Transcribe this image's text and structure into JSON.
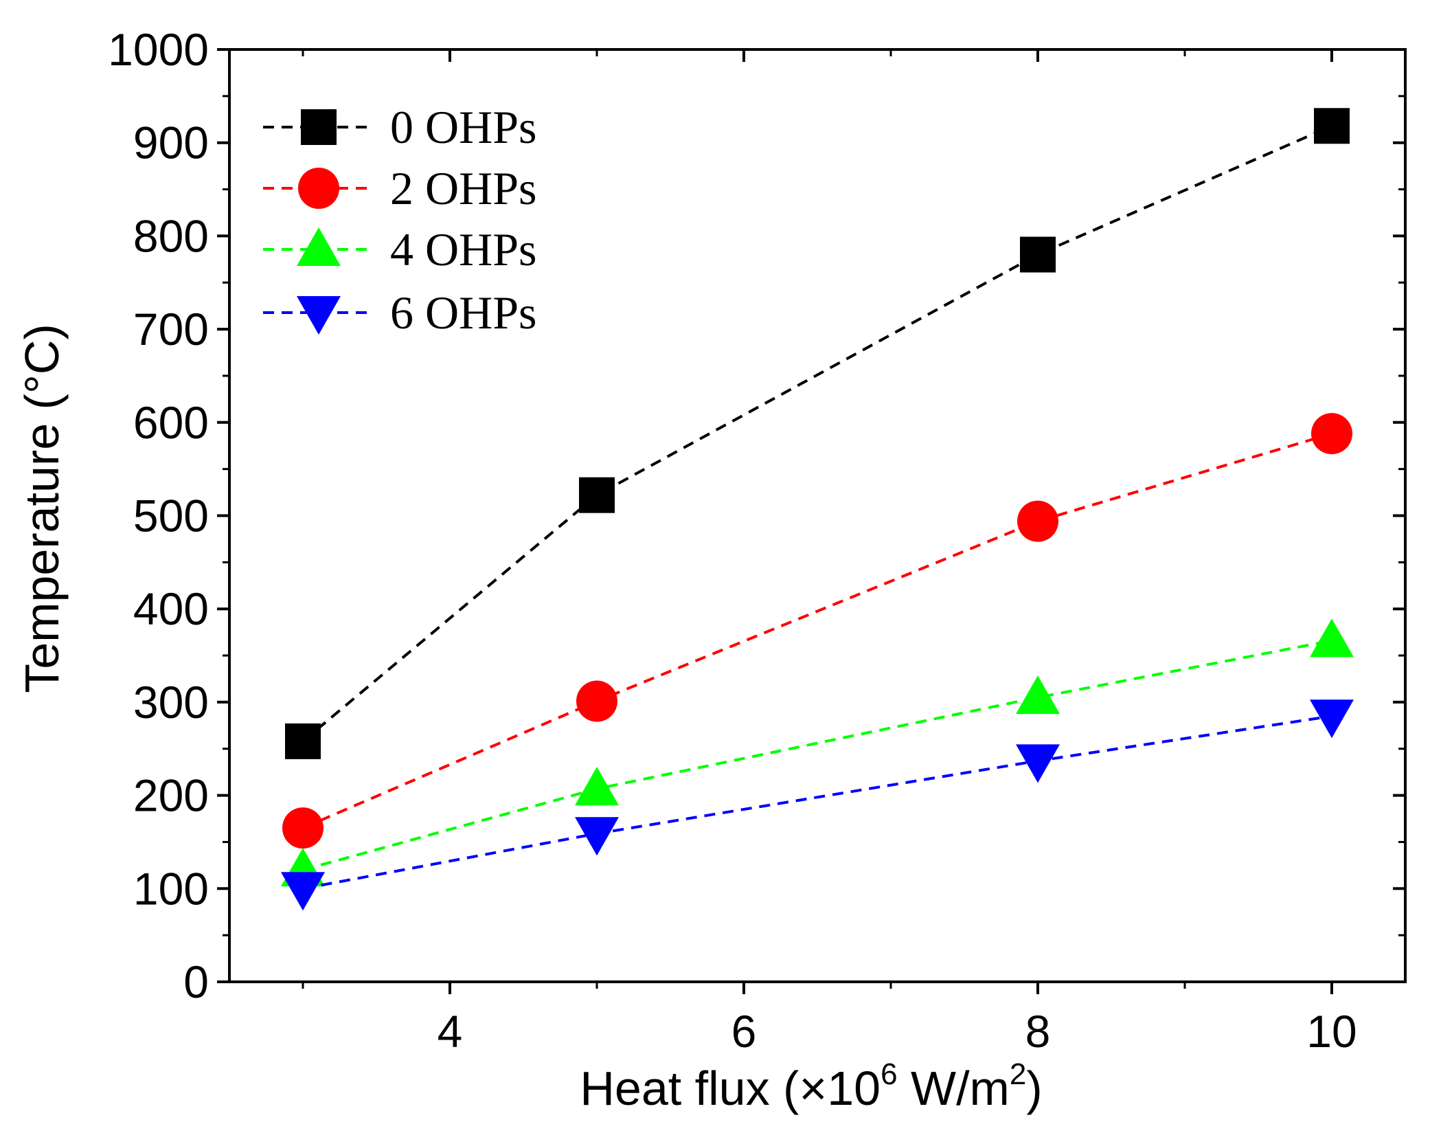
{
  "chart_data": {
    "type": "line",
    "title": "",
    "xlabel_main": "Heat flux (×10",
    "xlabel_exp": "6",
    "xlabel_unit": " W/m",
    "xlabel_unit_exp": "2",
    "xlabel_close": ")",
    "ylabel": "Temperature (°C)",
    "xlim": [
      2.5,
      10.5
    ],
    "ylim": [
      0,
      1000
    ],
    "xticks": [
      4,
      6,
      8,
      10
    ],
    "xticks_minor": [
      3,
      5,
      7,
      9
    ],
    "yticks": [
      0,
      100,
      200,
      300,
      400,
      500,
      600,
      700,
      800,
      900,
      1000
    ],
    "yticks_minor": [
      50,
      150,
      250,
      350,
      450,
      550,
      650,
      750,
      850,
      950
    ],
    "legend_position": "top-left",
    "series": [
      {
        "name": "0 OHPs",
        "marker": "square",
        "color": "#000000",
        "x": [
          3,
          5,
          8,
          10
        ],
        "y": [
          258,
          522,
          780,
          918
        ]
      },
      {
        "name": "2 OHPs",
        "marker": "circle",
        "color": "#ff0000",
        "x": [
          3,
          5,
          8,
          10
        ],
        "y": [
          165,
          301,
          494,
          588
        ]
      },
      {
        "name": "4 OHPs",
        "marker": "triangle-up",
        "color": "#00ff00",
        "x": [
          3,
          5,
          8,
          10
        ],
        "y": [
          120,
          207,
          305,
          366
        ]
      },
      {
        "name": "6 OHPs",
        "marker": "triangle-down",
        "color": "#0000ff",
        "x": [
          3,
          5,
          8,
          10
        ],
        "y": [
          100,
          159,
          237,
          285
        ]
      }
    ]
  }
}
